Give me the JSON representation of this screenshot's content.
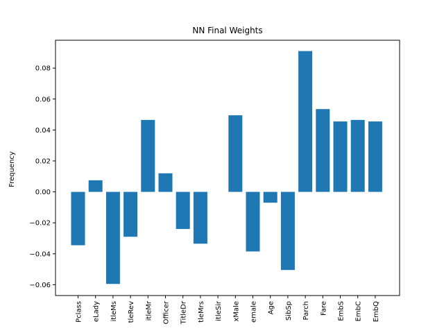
{
  "chart_data": {
    "type": "bar",
    "title": "NN Final Weights",
    "xlabel": "",
    "ylabel": "Frequency",
    "categories": [
      "Pclass",
      "eLady",
      "itleMs",
      "tleRev",
      "itleMr",
      "Officer",
      "TitleDr",
      "tleMrs",
      "itleSir",
      "xMale",
      "emale",
      "Age",
      "SibSp",
      "Parch",
      "Fare",
      "EmbS",
      "EmbC",
      "EmbQ"
    ],
    "values": [
      -0.0345,
      0.0075,
      -0.0595,
      -0.029,
      0.0465,
      0.012,
      -0.024,
      -0.0335,
      0.0,
      0.0495,
      -0.0385,
      -0.007,
      -0.0505,
      0.091,
      0.0535,
      0.0455,
      0.0465,
      0.0455
    ],
    "ylim": [
      -0.067,
      0.098
    ],
    "yticks": [
      -0.06,
      -0.04,
      -0.02,
      0.0,
      0.02,
      0.04,
      0.06,
      0.08
    ],
    "ytick_labels": [
      "−0.06",
      "−0.04",
      "−0.02",
      "0.00",
      "0.02",
      "0.04",
      "0.06",
      "0.08"
    ],
    "bar_color": "#1f77b4",
    "grid": false,
    "legend": "none"
  }
}
